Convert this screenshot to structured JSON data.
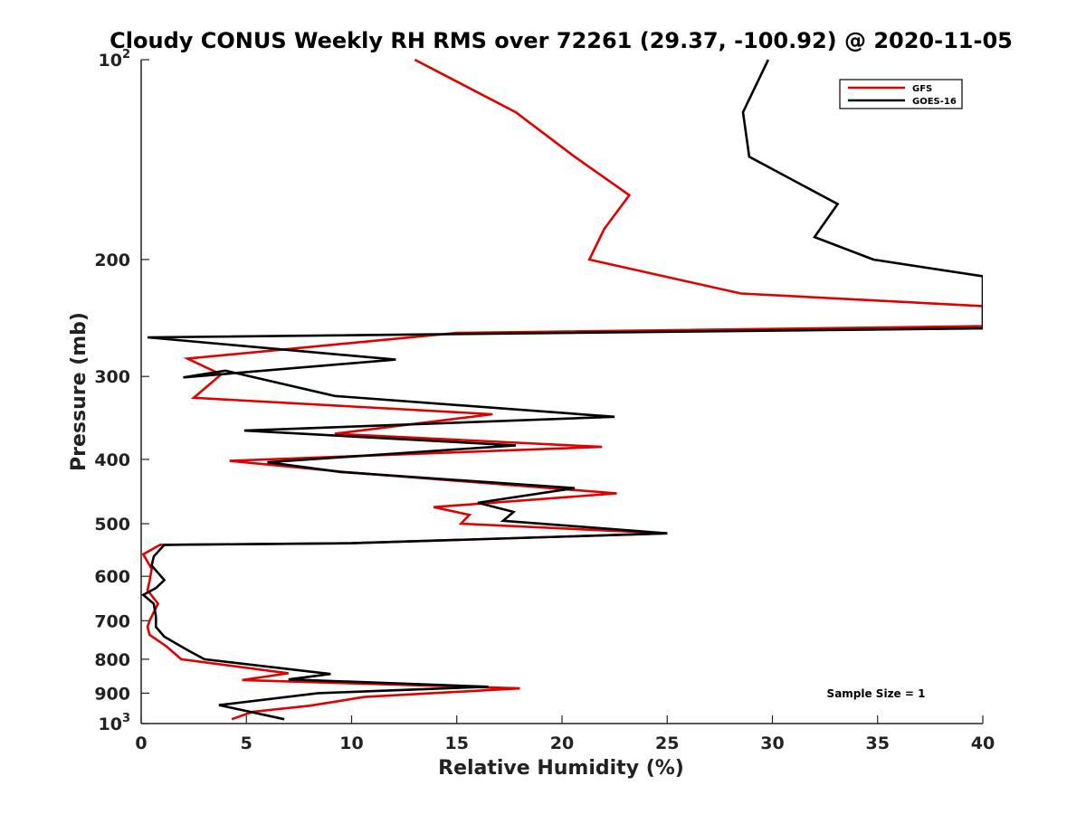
{
  "chart_data": {
    "type": "line",
    "title": "Cloudy CONUS Weekly RH RMS over 72261 (29.37, -100.92) @ 2020-11-05",
    "xlabel": "Relative Humidity (%)",
    "ylabel": "Pressure (mb)",
    "xlim": [
      0,
      40
    ],
    "ylim": [
      100,
      1000
    ],
    "yscale": "log",
    "y_reversed": true,
    "grid": false,
    "x_ticks": [
      0,
      5,
      10,
      15,
      20,
      25,
      30,
      35,
      40
    ],
    "x_tick_labels": [
      "0",
      "5",
      "10",
      "15",
      "20",
      "25",
      "30",
      "35",
      "40"
    ],
    "y_ticks": [
      {
        "value": 100,
        "base": "10",
        "sup": "2"
      },
      {
        "value": 200,
        "label": "200"
      },
      {
        "value": 300,
        "label": "300"
      },
      {
        "value": 400,
        "label": "400"
      },
      {
        "value": 500,
        "label": "500"
      },
      {
        "value": 600,
        "label": "600"
      },
      {
        "value": 700,
        "label": "700"
      },
      {
        "value": 800,
        "label": "800"
      },
      {
        "value": 900,
        "label": "900"
      },
      {
        "value": 1000,
        "base": "10",
        "sup": "3"
      }
    ],
    "legend_position": "top-right",
    "annotation": "Sample Size = 1",
    "series": [
      {
        "name": "GFS",
        "color": "#e00000",
        "points": [
          [
            13.0,
            100
          ],
          [
            17.8,
            120
          ],
          [
            20.6,
            140
          ],
          [
            23.2,
            160
          ],
          [
            22.0,
            180
          ],
          [
            21.3,
            200
          ],
          [
            28.5,
            225
          ],
          [
            40.0,
            235
          ],
          [
            40.0,
            252
          ],
          [
            15.0,
            258
          ],
          [
            2.2,
            282
          ],
          [
            3.8,
            298
          ],
          [
            2.5,
            323
          ],
          [
            16.7,
            342
          ],
          [
            9.2,
            366
          ],
          [
            21.9,
            383
          ],
          [
            4.2,
            402
          ],
          [
            9.7,
            418
          ],
          [
            22.6,
            450
          ],
          [
            13.9,
            472
          ],
          [
            15.6,
            485
          ],
          [
            15.2,
            500
          ],
          [
            25.0,
            517
          ],
          [
            10.0,
            535
          ],
          [
            0.9,
            538
          ],
          [
            0.1,
            556
          ],
          [
            0.5,
            585
          ],
          [
            0.4,
            610
          ],
          [
            0.3,
            630
          ],
          [
            0.8,
            660
          ],
          [
            0.4,
            700
          ],
          [
            0.3,
            715
          ],
          [
            0.4,
            735
          ],
          [
            1.2,
            765
          ],
          [
            1.9,
            800
          ],
          [
            7.0,
            840
          ],
          [
            4.8,
            860
          ],
          [
            18.0,
            885
          ],
          [
            10.6,
            912
          ],
          [
            8.0,
            940
          ],
          [
            5.3,
            960
          ],
          [
            4.3,
            985
          ]
        ]
      },
      {
        "name": "GOES-16",
        "color": "#000000",
        "points": [
          [
            29.8,
            100
          ],
          [
            28.6,
            120
          ],
          [
            28.9,
            140
          ],
          [
            33.1,
            165
          ],
          [
            32.0,
            185
          ],
          [
            34.8,
            200
          ],
          [
            40.0,
            212
          ],
          [
            40.0,
            254
          ],
          [
            0.3,
            262
          ],
          [
            12.1,
            283
          ],
          [
            2.0,
            301
          ],
          [
            4.0,
            294
          ],
          [
            9.2,
            321
          ],
          [
            22.5,
            345
          ],
          [
            4.9,
            362
          ],
          [
            17.8,
            381
          ],
          [
            6.0,
            404
          ],
          [
            9.5,
            418
          ],
          [
            20.6,
            442
          ],
          [
            16.0,
            465
          ],
          [
            17.7,
            480
          ],
          [
            17.2,
            495
          ],
          [
            25.0,
            517
          ],
          [
            10.0,
            535
          ],
          [
            1.1,
            538
          ],
          [
            0.6,
            560
          ],
          [
            0.5,
            578
          ],
          [
            1.1,
            608
          ],
          [
            0.7,
            625
          ],
          [
            0.1,
            640
          ],
          [
            0.6,
            660
          ],
          [
            0.7,
            690
          ],
          [
            0.7,
            715
          ],
          [
            1.1,
            740
          ],
          [
            2.2,
            775
          ],
          [
            3.0,
            800
          ],
          [
            9.0,
            842
          ],
          [
            7.0,
            858
          ],
          [
            16.5,
            880
          ],
          [
            8.4,
            900
          ],
          [
            3.7,
            938
          ],
          [
            6.8,
            985
          ]
        ]
      }
    ]
  }
}
